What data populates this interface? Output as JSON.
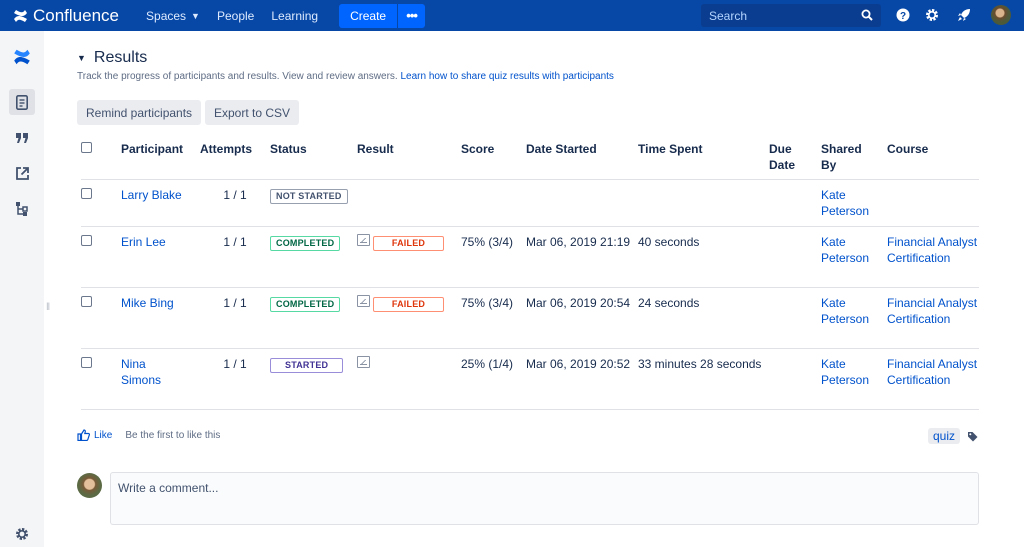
{
  "topnav": {
    "brand": "Confluence",
    "spaces": "Spaces",
    "people": "People",
    "learning": "Learning",
    "create": "Create",
    "more": "•••",
    "search_placeholder": "Search",
    "bg_color": "#0747a6",
    "accent_color": "#0065ff"
  },
  "page": {
    "title": "Results",
    "description": "Track the progress of participants and results. View and review answers.",
    "description_link": "Learn how to share quiz results with participants",
    "remind_button": "Remind participants",
    "export_button": "Export to CSV"
  },
  "table": {
    "headers": {
      "participant": "Participant",
      "attempts": "Attempts",
      "status": "Status",
      "result": "Result",
      "score": "Score",
      "date_started": "Date Started",
      "time_spent": "Time Spent",
      "due_date": "Due Date",
      "shared_by": "Shared By",
      "course": "Course"
    },
    "rows": [
      {
        "participant": "Larry Blake",
        "attempts": "1 / 1",
        "status": "NOT STARTED",
        "result": "",
        "score": "",
        "date_started": "",
        "time_spent": "",
        "due_date": "",
        "shared_by": "Kate Peterson",
        "course": ""
      },
      {
        "participant": "Erin Lee",
        "attempts": "1 / 1",
        "status": "COMPLETED",
        "result": "FAILED",
        "score": "75% (3/4)",
        "date_started": "Mar 06, 2019 21:19",
        "time_spent": "40 seconds",
        "due_date": "",
        "shared_by": "Kate Peterson",
        "course": "Financial Analyst Certification"
      },
      {
        "participant": "Mike Bing",
        "attempts": "1 / 1",
        "status": "COMPLETED",
        "result": "FAILED",
        "score": "75% (3/4)",
        "date_started": "Mar 06, 2019 20:54",
        "time_spent": "24 seconds",
        "due_date": "",
        "shared_by": "Kate Peterson",
        "course": "Financial Analyst Certification"
      },
      {
        "participant": "Nina Simons",
        "attempts": "1 / 1",
        "status": "STARTED",
        "result": "",
        "score": "25% (1/4)",
        "date_started": "Mar 06, 2019 20:52",
        "time_spent": "33 minutes 28 seconds",
        "due_date": "",
        "shared_by": "Kate Peterson",
        "course": "Financial Analyst Certification"
      }
    ]
  },
  "footer": {
    "like": "Like",
    "first_like": "Be the first to like this",
    "label": "quiz",
    "comment_placeholder": "Write a comment..."
  },
  "icons": {
    "sidebar": [
      "confluence-logo-icon",
      "pages-icon",
      "quote-icon",
      "external-link-icon",
      "tree-icon",
      "settings-icon"
    ],
    "topnav": [
      "search-icon",
      "help-icon",
      "settings-icon",
      "rocket-icon",
      "avatar"
    ]
  }
}
